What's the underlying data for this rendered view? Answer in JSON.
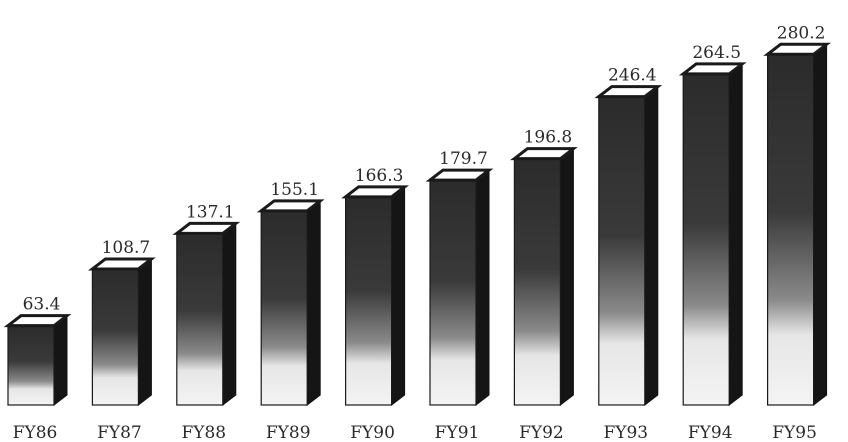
{
  "chart_data": {
    "type": "bar",
    "style": "3d-column",
    "categories": [
      "FY86",
      "FY87",
      "FY88",
      "FY89",
      "FY90",
      "FY91",
      "FY92",
      "FY93",
      "FY94",
      "FY95"
    ],
    "values": [
      63.4,
      108.7,
      137.1,
      155.1,
      166.3,
      179.7,
      196.8,
      246.4,
      264.5,
      280.2
    ],
    "value_labels": [
      "63.4",
      "108.7",
      "137.1",
      "155.1",
      "166.3",
      "179.7",
      "196.8",
      "246.4",
      "264.5",
      "280.2"
    ],
    "title": "",
    "xlabel": "",
    "ylabel": "",
    "ylim": [
      0,
      290
    ],
    "grid": false,
    "legend": "none",
    "colors": {
      "front_dark": "#2b2b2b",
      "front_light": "#f2f2f2",
      "side": "#151515",
      "top": "#ffffff"
    }
  }
}
